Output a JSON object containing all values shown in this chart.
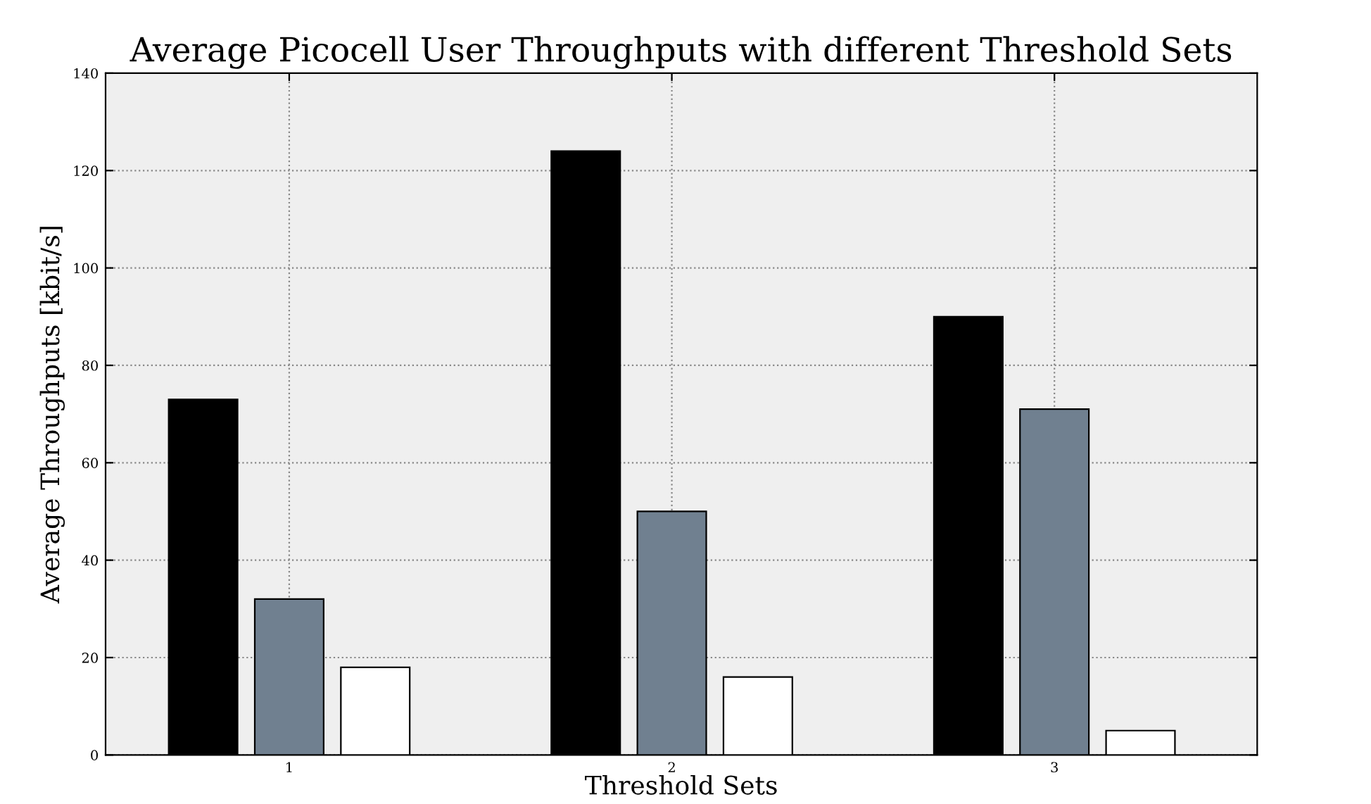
{
  "chart_data": {
    "type": "bar",
    "title": "Average Picocell User Throughputs with different Threshold Sets",
    "xlabel": "Threshold Sets",
    "ylabel": "Average Throughputs [kbit/s]",
    "categories": [
      "1",
      "2",
      "3"
    ],
    "series": [
      {
        "color": "#000000",
        "values": [
          73,
          124,
          90
        ]
      },
      {
        "color": "#708090",
        "values": [
          32,
          50,
          71
        ]
      },
      {
        "color": "#ffffff",
        "values": [
          18,
          16,
          5
        ]
      }
    ],
    "ylim": [
      0,
      140
    ],
    "yticks": [
      0,
      20,
      40,
      60,
      80,
      100,
      120,
      140
    ],
    "grid": true,
    "legend": false
  }
}
